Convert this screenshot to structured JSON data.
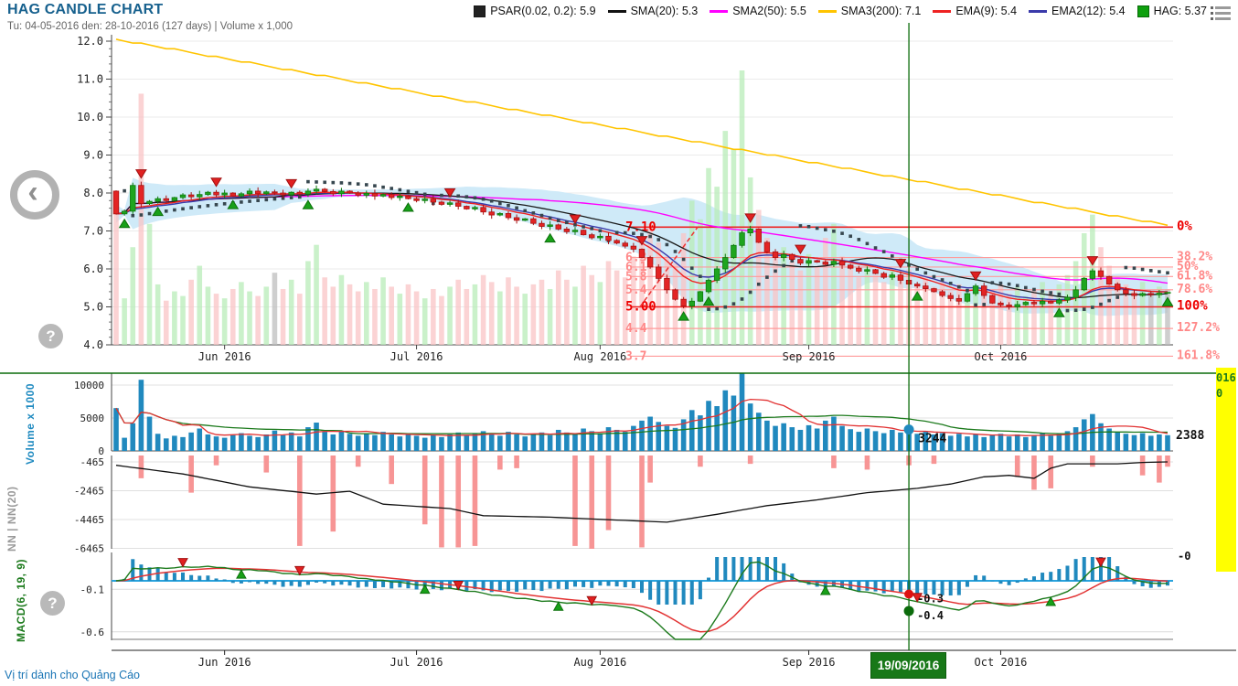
{
  "header": {
    "title": "HAG CANDLE CHART",
    "subtitle": "Tu: 04-05-2016 den: 28-10-2016 (127 days) | Volume x 1,000"
  },
  "legend": {
    "items": [
      {
        "label": "PSAR(0.02, 0.2): 5.9",
        "swatch": "square",
        "color": "#222222"
      },
      {
        "label": "SMA(20): 5.3",
        "swatch": "line",
        "color": "#111111"
      },
      {
        "label": "SMA2(50): 5.5",
        "swatch": "line",
        "color": "#ff00ff"
      },
      {
        "label": "SMA3(200): 7.1",
        "swatch": "line",
        "color": "#ffc400"
      },
      {
        "label": "EMA(9): 5.4",
        "swatch": "line",
        "color": "#ee2222"
      },
      {
        "label": "EMA2(12): 5.4",
        "swatch": "line",
        "color": "#3a3aaa"
      },
      {
        "label": "HAG: 5.37",
        "swatch": "square",
        "color": "#0ea00e"
      }
    ]
  },
  "panels": {
    "volume_label": "Volume x 1000",
    "nn_label": "NN | NN(20)",
    "macd_label": "MACD(6, 19, 9)"
  },
  "crosshair": {
    "date": "19/09/2016",
    "index": 95,
    "volume_value": "3244",
    "macd_value": "-0.3",
    "signal_value": "-0.4"
  },
  "right_labels": {
    "volume_last": "2388",
    "macd_zero": "-0"
  },
  "side_strip": {
    "lines": [
      "016",
      "0"
    ]
  },
  "footer": {
    "ad_text": "Vị trí dành cho Quảng Cáo"
  },
  "chart_data": {
    "type": "candlestick",
    "symbol": "HAG",
    "last_price": 5.37,
    "price_axis": {
      "min": 4.0,
      "max": 12.0,
      "step": 1.0
    },
    "volume_axis": {
      "ticks": [
        0,
        5000,
        10000
      ],
      "max": 11800
    },
    "nn_axis": {
      "ticks": [
        -465,
        -2465,
        -4465,
        -6465
      ]
    },
    "macd_axis": {
      "ticks": [
        -0.1,
        -0.6
      ]
    },
    "month_ticks": [
      {
        "label": "Jun 2016",
        "index": 13
      },
      {
        "label": "Jul 2016",
        "index": 36
      },
      {
        "label": "Aug 2016",
        "index": 58
      },
      {
        "label": "Sep 2016",
        "index": 83
      },
      {
        "label": "Oct 2016",
        "index": 106
      }
    ],
    "first_open": 8.05,
    "close": [
      7.45,
      7.52,
      8.2,
      7.72,
      7.78,
      7.85,
      7.8,
      7.88,
      7.95,
      7.9,
      7.96,
      8.02,
      7.95,
      8.0,
      7.92,
      7.98,
      8.05,
      7.98,
      8.03,
      8.0,
      7.95,
      8.02,
      7.97,
      8.05,
      8.1,
      8.04,
      7.98,
      8.05,
      8.0,
      7.94,
      7.99,
      7.92,
      7.96,
      7.88,
      7.92,
      7.85,
      7.8,
      7.84,
      7.76,
      7.7,
      7.74,
      7.65,
      7.58,
      7.62,
      7.5,
      7.42,
      7.46,
      7.35,
      7.28,
      7.32,
      7.2,
      7.12,
      7.16,
      7.05,
      6.98,
      7.02,
      6.9,
      6.82,
      6.86,
      6.75,
      6.68,
      6.6,
      6.52,
      6.3,
      6.05,
      5.75,
      5.45,
      5.2,
      5.02,
      5.15,
      5.4,
      5.7,
      6.0,
      6.3,
      6.62,
      6.95,
      7.05,
      6.7,
      6.45,
      6.3,
      6.38,
      6.25,
      6.15,
      6.22,
      6.18,
      6.12,
      6.2,
      6.1,
      6.02,
      5.94,
      5.98,
      5.88,
      5.78,
      5.84,
      5.7,
      5.6,
      5.55,
      5.48,
      5.4,
      5.3,
      5.22,
      5.15,
      5.35,
      5.55,
      5.3,
      5.1,
      5.05,
      5.0,
      5.06,
      5.12,
      5.08,
      5.15,
      5.1,
      5.18,
      5.25,
      5.45,
      5.75,
      5.95,
      5.8,
      5.6,
      5.45,
      5.35,
      5.3,
      5.35,
      5.32,
      5.36,
      5.37
    ],
    "volume_x1000": [
      6500,
      2000,
      4200,
      10800,
      5200,
      2600,
      1900,
      2300,
      2100,
      2800,
      3400,
      2500,
      2200,
      2000,
      2400,
      2700,
      2300,
      2100,
      2500,
      3100,
      2400,
      2800,
      2200,
      3600,
      4300,
      2900,
      2500,
      3000,
      2600,
      2300,
      2700,
      2400,
      2900,
      2500,
      2200,
      2600,
      2300,
      2000,
      2400,
      2100,
      2500,
      2800,
      2400,
      2600,
      3000,
      2700,
      2300,
      2900,
      2500,
      2200,
      2600,
      2800,
      2400,
      3200,
      2800,
      2500,
      3400,
      3000,
      2700,
      3600,
      3200,
      2900,
      3800,
      4600,
      5200,
      4400,
      3800,
      3500,
      4800,
      6200,
      5400,
      7600,
      6800,
      9200,
      8400,
      11800,
      7200,
      5800,
      4600,
      3800,
      4200,
      3600,
      3200,
      3900,
      3400,
      4600,
      5200,
      3800,
      3300,
      2900,
      3400,
      3000,
      2700,
      3200,
      2800,
      3244,
      2600,
      2900,
      2500,
      2700,
      2300,
      2600,
      2200,
      2500,
      2100,
      2400,
      2600,
      2200,
      2500,
      2100,
      2400,
      2700,
      2300,
      2600,
      3000,
      3600,
      4800,
      5600,
      4200,
      3400,
      2900,
      2600,
      2400,
      2700,
      2300,
      2500,
      2388
    ],
    "nn_bars": {
      "3": -1600,
      "9": -2600,
      "12": -700,
      "18": -1200,
      "22": -6300,
      "26": -5300,
      "29": -800,
      "33": -2000,
      "37": -4800,
      "39": -6400,
      "41": -6400,
      "43": -6300,
      "46": -1000,
      "48": -900,
      "55": -6300,
      "57": -6500,
      "59": -5200,
      "63": -6400,
      "64": -1900,
      "70": -800,
      "76": -600,
      "86": -900,
      "90": -1000,
      "95": -700,
      "98": -600,
      "108": -1500,
      "110": -2400,
      "112": -2300,
      "117": -800,
      "123": -1400,
      "125": -1900,
      "126": -800
    },
    "nn_line_keypoints": [
      [
        0,
        -700
      ],
      [
        8,
        -1300
      ],
      [
        16,
        -2200
      ],
      [
        24,
        -2700
      ],
      [
        28,
        -2500
      ],
      [
        32,
        -3400
      ],
      [
        40,
        -3700
      ],
      [
        44,
        -4200
      ],
      [
        52,
        -4300
      ],
      [
        60,
        -4500
      ],
      [
        66,
        -4650
      ],
      [
        72,
        -4100
      ],
      [
        78,
        -3500
      ],
      [
        84,
        -3100
      ],
      [
        90,
        -2600
      ],
      [
        96,
        -2300
      ],
      [
        100,
        -2000
      ],
      [
        104,
        -1500
      ],
      [
        107,
        -1400
      ],
      [
        110,
        -1600
      ],
      [
        112,
        -900
      ],
      [
        114,
        -600
      ],
      [
        120,
        -600
      ],
      [
        123,
        -500
      ],
      [
        126,
        -465
      ]
    ],
    "fibonacci": [
      {
        "pct": "0%",
        "price": 7.1,
        "label": "7.10",
        "bold": true
      },
      {
        "pct": "38.2%",
        "price": 6.3,
        "label": "6.3",
        "bold": false
      },
      {
        "pct": "50%",
        "price": 6.05,
        "label": "6.1",
        "bold": false
      },
      {
        "pct": "61.8%",
        "price": 5.8,
        "label": "5.8",
        "bold": false
      },
      {
        "pct": "78.6%",
        "price": 5.45,
        "label": "5.4",
        "bold": false
      },
      {
        "pct": "100%",
        "price": 5.0,
        "label": "5.00",
        "bold": true
      },
      {
        "pct": "127.2%",
        "price": 4.43,
        "label": "4.4",
        "bold": false
      },
      {
        "pct": "161.8%",
        "price": 3.7,
        "label": "3.7",
        "bold": false
      }
    ],
    "sma3_200": {
      "start": 12.05,
      "end": 7.15
    },
    "buy_markers": [
      1,
      5,
      14,
      23,
      35,
      52,
      68,
      71,
      96,
      113,
      126
    ],
    "sell_markers": [
      3,
      12,
      21,
      40,
      55,
      63,
      76,
      82,
      94,
      103,
      117
    ],
    "macd_buy_markers": [
      15,
      37,
      53,
      85,
      112
    ],
    "macd_sell_markers": [
      8,
      22,
      41,
      57,
      96,
      118
    ],
    "indicators": {
      "psar": [
        0.02,
        0.2
      ],
      "sma": 20,
      "sma2": 50,
      "sma3": 200,
      "ema": 9,
      "ema2": 12,
      "macd": [
        6,
        19,
        9
      ]
    },
    "colors": {
      "up": "#1fa51f",
      "down": "#e32424",
      "vol_up": "#b8ecb8",
      "vol_down": "#f9c4c6",
      "vol_neutral": "#bdbdbd",
      "band": "#cfeaf8",
      "vol_bar": "#2089be",
      "nn_bar": "#f79595",
      "fib": "#ff8888",
      "fib_bold": "#ee0000",
      "crosshair": "#0b6b0b",
      "sep_line": "#0b6b0b",
      "macd_line": "#1c7a1c",
      "signal_line": "#e23333",
      "psar_dot": "#37474f",
      "sma": "#1a1a1a",
      "sma2": "#ff00ff",
      "sma3": "#ffc400",
      "ema": "#ee2222",
      "ema2": "#3a3aaa"
    }
  }
}
